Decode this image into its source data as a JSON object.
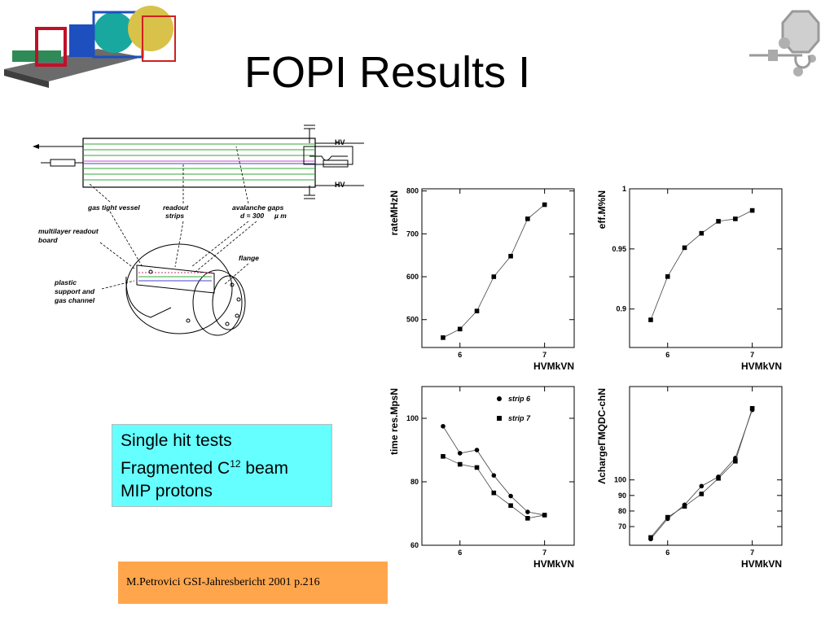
{
  "title": "FOPI Results I",
  "info_box": {
    "line1": "Single hit tests",
    "line2_prefix": "Fragmented C",
    "line2_sup": "12",
    "line2_suffix": " beam",
    "line3": "MIP protons"
  },
  "citation": "M.Petrovici  GSI-Jahresbericht 2001 p.216",
  "diagram": {
    "hv_top": "HV",
    "hv_bottom": "HV",
    "label_gas_tight_vessel": "gas tight vessel",
    "label_readout_strips_1": "readout",
    "label_readout_strips_2": "strips",
    "label_avalanche_1": "avalanche gaps",
    "label_avalanche_2": "d = 300",
    "label_avalanche_unit": "µ m",
    "label_multilayer_1": "multilayer readout",
    "label_multilayer_2": "board",
    "label_flange": "flange",
    "label_plastic_1": "plastic",
    "label_plastic_2": "support and",
    "label_plastic_3": "gas channel"
  },
  "chart_data": [
    {
      "type": "line",
      "xlabel": "HVMkVN",
      "ylabel": "rateMHzN",
      "xlim": [
        5.55,
        7.35
      ],
      "ylim": [
        435,
        805
      ],
      "xticks": [
        6,
        7
      ],
      "yticks": [
        500,
        600,
        700,
        800
      ],
      "series": [
        {
          "marker": "square",
          "x": [
            5.8,
            6.0,
            6.2,
            6.4,
            6.6,
            6.8,
            7.0
          ],
          "values": [
            458,
            478,
            520,
            600,
            648,
            735,
            768
          ]
        }
      ]
    },
    {
      "type": "line",
      "xlabel": "HVMkVN",
      "ylabel": "eff.M%N",
      "xlim": [
        5.55,
        7.35
      ],
      "ylim": [
        0.868,
        1.0
      ],
      "xticks": [
        6,
        7
      ],
      "yticks": [
        0.9,
        0.95,
        1
      ],
      "ytick_labels": [
        "0.9",
        "0.95",
        "1"
      ],
      "series": [
        {
          "marker": "square",
          "x": [
            5.8,
            6.0,
            6.2,
            6.4,
            6.6,
            6.8,
            7.0
          ],
          "values": [
            0.891,
            0.927,
            0.951,
            0.963,
            0.973,
            0.975,
            0.982
          ]
        }
      ]
    },
    {
      "type": "line",
      "xlabel": "HVMkVN",
      "ylabel": "time res.MpsN",
      "xlim": [
        5.55,
        7.35
      ],
      "ylim": [
        60,
        110
      ],
      "xticks": [
        6,
        7
      ],
      "yticks": [
        60,
        80,
        100
      ],
      "legend": "top-right",
      "series": [
        {
          "name": "strip 6",
          "marker": "circle",
          "x": [
            5.8,
            6.0,
            6.2,
            6.4,
            6.6,
            6.8,
            7.0
          ],
          "values": [
            97.5,
            89,
            90,
            82,
            75.5,
            70.5,
            69.5
          ]
        },
        {
          "name": "strip 7",
          "marker": "square",
          "x": [
            5.8,
            6.0,
            6.2,
            6.4,
            6.6,
            6.8,
            7.0
          ],
          "values": [
            88,
            85.5,
            84.5,
            76.5,
            72.5,
            68.5,
            69.5
          ]
        }
      ]
    },
    {
      "type": "line",
      "xlabel": "HVMkVN",
      "ylabel": "ΛchargeΓMQDC-chN",
      "xlim": [
        5.55,
        7.35
      ],
      "ylim": [
        58,
        160
      ],
      "xticks": [
        6,
        7
      ],
      "yticks": [
        70,
        80,
        90,
        100
      ],
      "series": [
        {
          "marker": "circle",
          "x": [
            5.8,
            6.0,
            6.2,
            6.4,
            6.6,
            6.8,
            7.0
          ],
          "values": [
            62,
            75,
            84,
            96,
            102,
            114,
            145
          ]
        },
        {
          "marker": "square",
          "x": [
            5.8,
            6.0,
            6.2,
            6.4,
            6.6,
            6.8,
            7.0
          ],
          "values": [
            63,
            76,
            83,
            91,
            101,
            112,
            146
          ]
        }
      ]
    }
  ]
}
